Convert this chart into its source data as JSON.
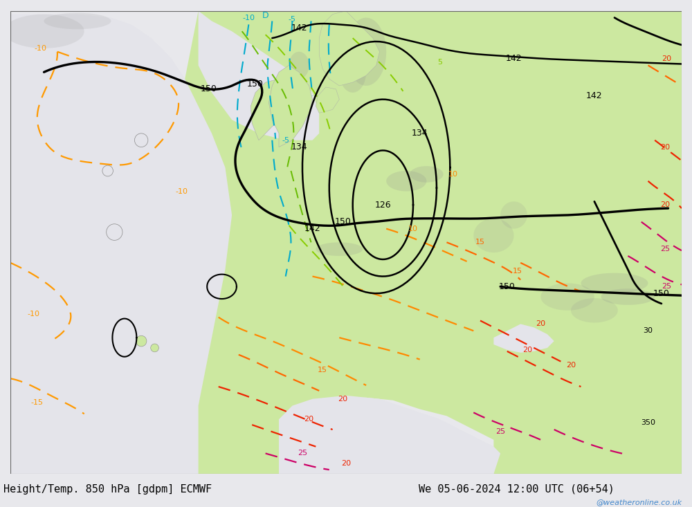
{
  "title_left": "Height/Temp. 850 hPa [gdpm] ECMWF",
  "title_right": "We 05-06-2024 12:00 UTC (06+54)",
  "watermark": "@weatheronline.co.uk",
  "fig_width": 10.0,
  "fig_height": 7.33,
  "title_fontsize": 11,
  "watermark_color": "#4488cc",
  "sea_color": "#e8e8ec",
  "land_light_color": "#c8e8a0",
  "land_gray_color": "#b8b8b8"
}
